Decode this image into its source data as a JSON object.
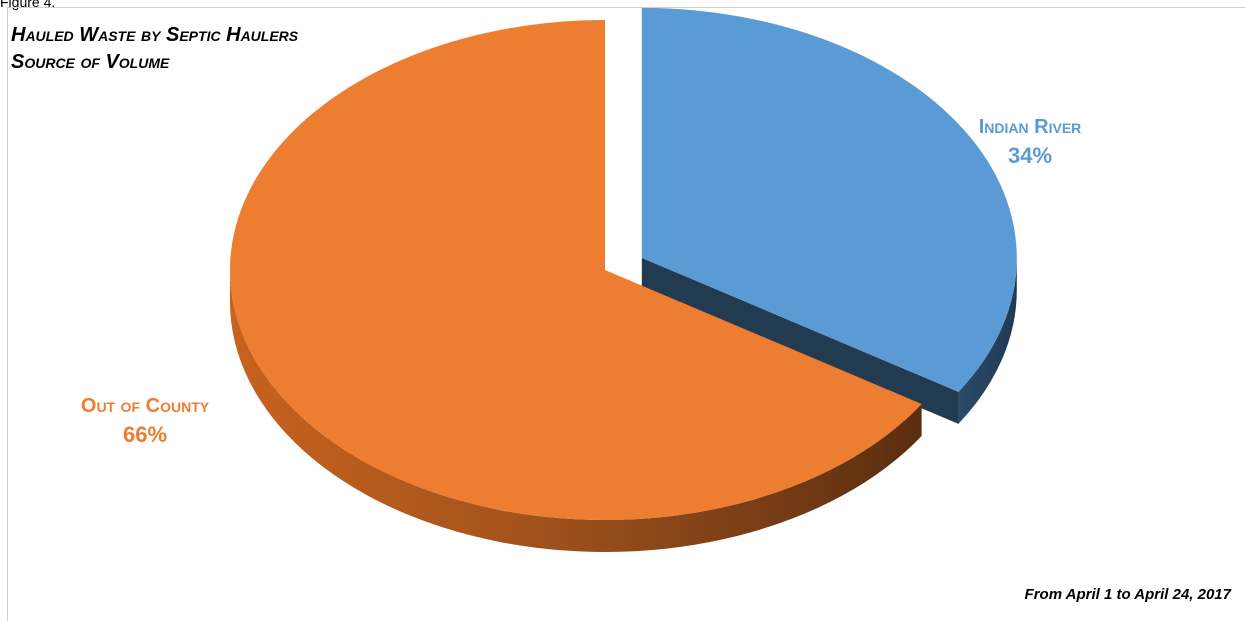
{
  "figure_label": "Figure 4.",
  "chart_data": {
    "type": "pie",
    "title_lines": [
      "Hauled Waste by Septic Haulers",
      "Source of Volume"
    ],
    "slices": [
      {
        "label": "Indian River",
        "value": 34,
        "display": "34%",
        "color": "#5b9bd5"
      },
      {
        "label": "Out of County",
        "value": 66,
        "display": "66%",
        "color": "#ed7d31"
      }
    ],
    "style": "3d-exploded",
    "footnote": "From April 1 to April 24, 2017"
  }
}
